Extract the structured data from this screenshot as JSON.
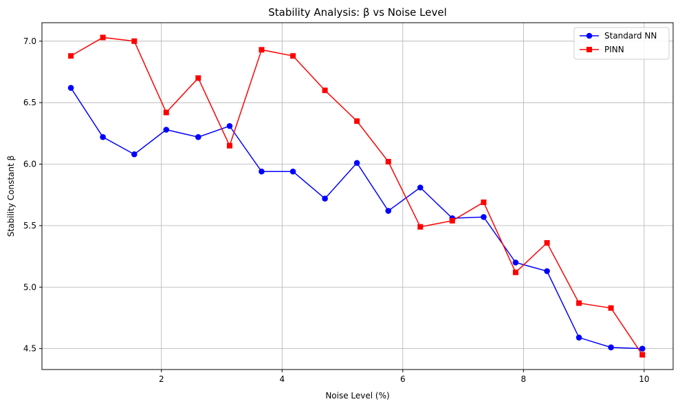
{
  "chart_data": {
    "type": "line",
    "title": "Stability Analysis: β vs Noise Level",
    "xlabel": "Noise Level (%)",
    "ylabel": "Stability Constant β",
    "xlim": [
      0.02,
      10.48
    ],
    "ylim": [
      4.33,
      7.15
    ],
    "xticks": [
      2,
      4,
      6,
      8,
      10
    ],
    "yticks": [
      4.5,
      5.0,
      5.5,
      6.0,
      6.5,
      7.0
    ],
    "xtick_labels": [
      "2",
      "4",
      "6",
      "8",
      "10"
    ],
    "ytick_labels": [
      "4.5",
      "5.0",
      "5.5",
      "6.0",
      "6.5",
      "7.0"
    ],
    "grid": true,
    "legend_position": "top-right",
    "x": [
      0.5,
      1.03,
      1.55,
      2.08,
      2.61,
      3.13,
      3.66,
      4.18,
      4.71,
      5.24,
      5.76,
      6.29,
      6.82,
      7.34,
      7.87,
      8.39,
      8.92,
      9.45,
      9.97
    ],
    "series": [
      {
        "name": "Standard NN",
        "color": "#0000ff",
        "marker": "circle",
        "values": [
          6.62,
          6.22,
          6.08,
          6.28,
          6.22,
          6.31,
          5.94,
          5.94,
          5.72,
          6.01,
          5.62,
          5.81,
          5.56,
          5.57,
          5.2,
          5.13,
          4.59,
          4.51,
          4.5
        ]
      },
      {
        "name": "PINN",
        "color": "#ff0000",
        "marker": "square",
        "values": [
          6.88,
          7.03,
          7.0,
          6.42,
          6.7,
          6.15,
          6.93,
          6.88,
          6.6,
          6.35,
          6.02,
          5.49,
          5.54,
          5.69,
          5.12,
          5.36,
          4.87,
          4.83,
          4.45
        ]
      }
    ]
  }
}
